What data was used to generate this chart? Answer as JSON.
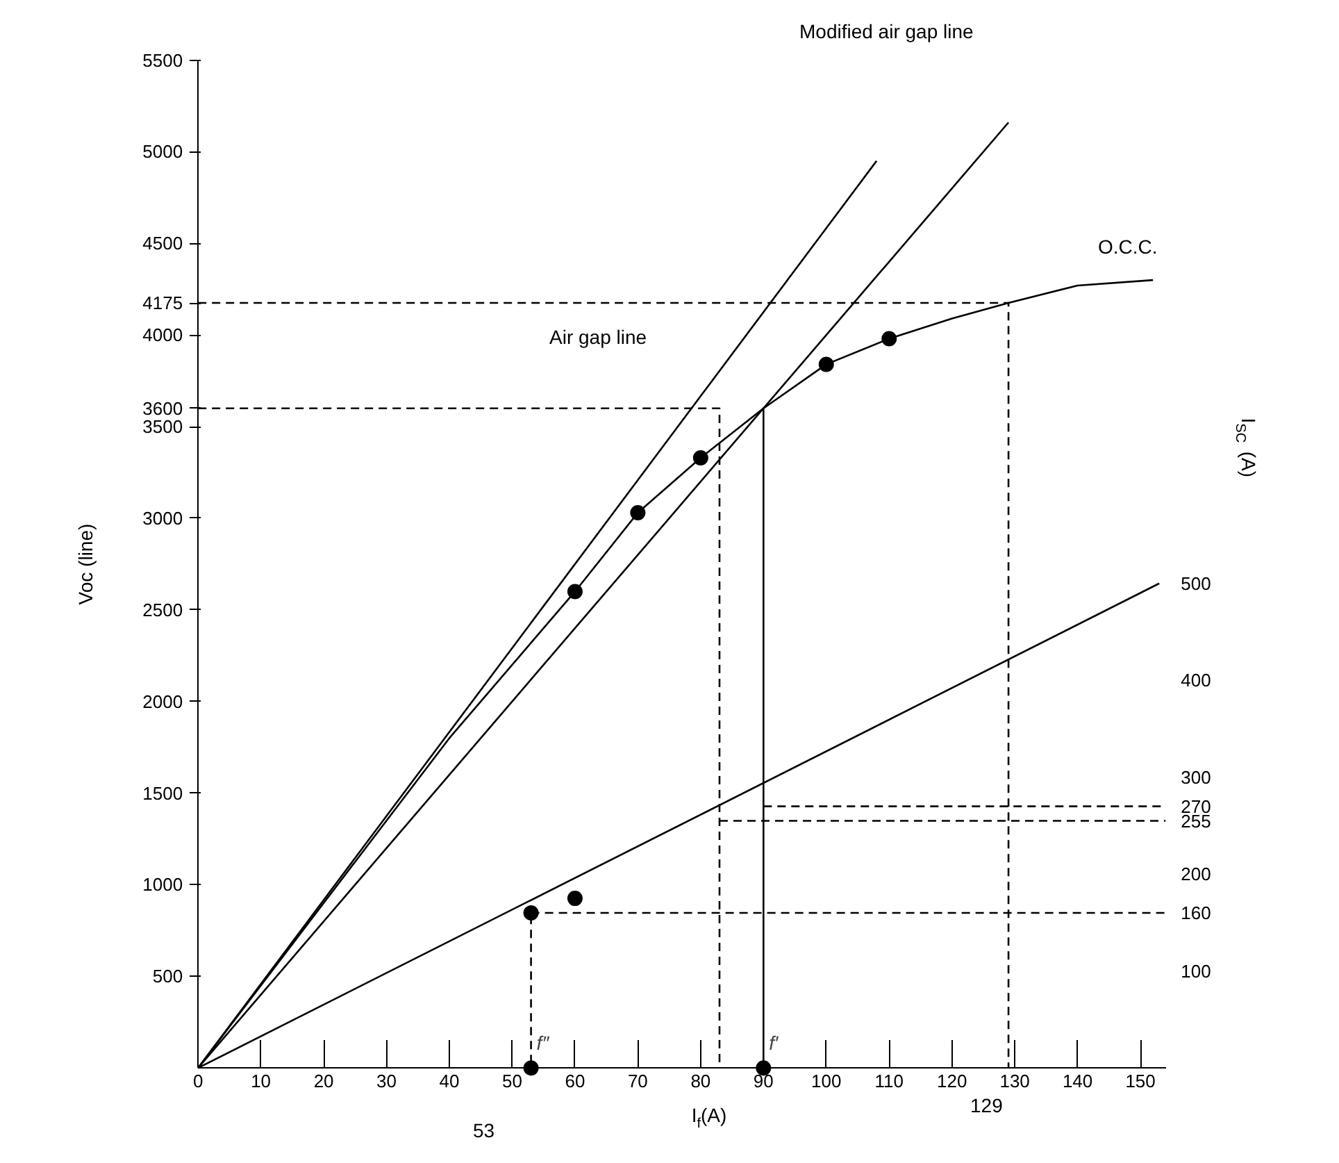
{
  "chart_data": {
    "type": "line",
    "xlabel": "I$_{f}$(A)",
    "ylabel": "Voc (line)",
    "y2label": "I$_{SC}$ (A)",
    "xlim": [
      0,
      154
    ],
    "ylim": [
      0,
      5500
    ],
    "y2lim": [
      0,
      1040
    ],
    "xticks": [
      0,
      10,
      20,
      30,
      40,
      50,
      60,
      70,
      80,
      90,
      100,
      110,
      120,
      130,
      140,
      150
    ],
    "yticks": [
      500,
      1000,
      1500,
      2000,
      2500,
      3000,
      3500,
      3600,
      4000,
      4175,
      4500,
      5000,
      5500
    ],
    "y2ticks": [
      100,
      160,
      200,
      255,
      270,
      300,
      400,
      500
    ],
    "grid": false,
    "series": [
      {
        "color": "#000000",
        "line_style": "solid",
        "marker": "none",
        "x": [
          0,
          20,
          40,
          60,
          70,
          80,
          90,
          100,
          110,
          120,
          129,
          140,
          152
        ],
        "values": [
          0,
          900,
          1800,
          2600,
          3030,
          3330,
          3600,
          3840,
          3980,
          4090,
          4175,
          4270,
          4300
        ]
      },
      {
        "type": "scatter",
        "color": "#000000",
        "marker": "circle",
        "x": [
          60,
          70,
          80,
          100,
          110
        ],
        "values": [
          2600,
          3030,
          3330,
          3840,
          3980
        ]
      },
      {
        "color": "#000000",
        "line_style": "solid",
        "marker": "none",
        "x": [
          0,
          108
        ],
        "values": [
          0,
          4950
        ]
      },
      {
        "color": "#000000",
        "line_style": "solid",
        "marker": "none",
        "x": [
          0,
          129
        ],
        "values": [
          0,
          5160
        ]
      },
      {
        "type": "line",
        "axis": "y2",
        "color": "#000000",
        "line_style": "solid",
        "marker": "none",
        "x": [
          0,
          153
        ],
        "values": [
          0,
          500
        ]
      },
      {
        "type": "scatter",
        "axis": "y2",
        "color": "#000000",
        "marker": "circle",
        "x": [
          53,
          60
        ],
        "values": [
          160,
          175
        ]
      },
      {
        "type": "scatter",
        "color": "#000000",
        "marker": "circle",
        "x": [
          53,
          90
        ],
        "values": [
          0,
          0
        ]
      },
      {
        "type": "line",
        "color": "#000000",
        "line_style": "dashed",
        "marker": "none",
        "x": [
          0,
          129,
          129
        ],
        "values": [
          4175,
          4175,
          0
        ]
      },
      {
        "type": "line",
        "color": "#000000",
        "line_style": "dashed",
        "marker": "none",
        "x": [
          0,
          83,
          83
        ],
        "values": [
          3600,
          3600,
          0
        ]
      },
      {
        "type": "line",
        "color": "#000000",
        "line_style": "solid",
        "marker": "none",
        "x": [
          90,
          90
        ],
        "values": [
          3600,
          0
        ]
      },
      {
        "type": "line",
        "color": "#000000",
        "line_style": "dashed",
        "marker": "none",
        "x": [
          53,
          53
        ],
        "values": [
          830,
          0
        ]
      },
      {
        "type": "line",
        "axis": "y2",
        "color": "#000000",
        "line_style": "dashed",
        "marker": "none",
        "x": [
          53,
          154
        ],
        "values": [
          160,
          160
        ]
      },
      {
        "type": "line",
        "axis": "y2",
        "color": "#000000",
        "line_style": "dashed",
        "marker": "none",
        "x": [
          83,
          154
        ],
        "values": [
          255,
          255
        ]
      },
      {
        "type": "line",
        "axis": "y2",
        "color": "#000000",
        "line_style": "dashed",
        "marker": "none",
        "x": [
          90,
          154
        ],
        "values": [
          270,
          270
        ]
      }
    ],
    "annotations": [
      "Modified air gap line",
      "Air gap line",
      "O.C.C.",
      {
        "text": "f″",
        "x": 53,
        "y": 0
      },
      {
        "text": "f′",
        "x": 90,
        "y": 0
      },
      "53",
      "129"
    ]
  }
}
